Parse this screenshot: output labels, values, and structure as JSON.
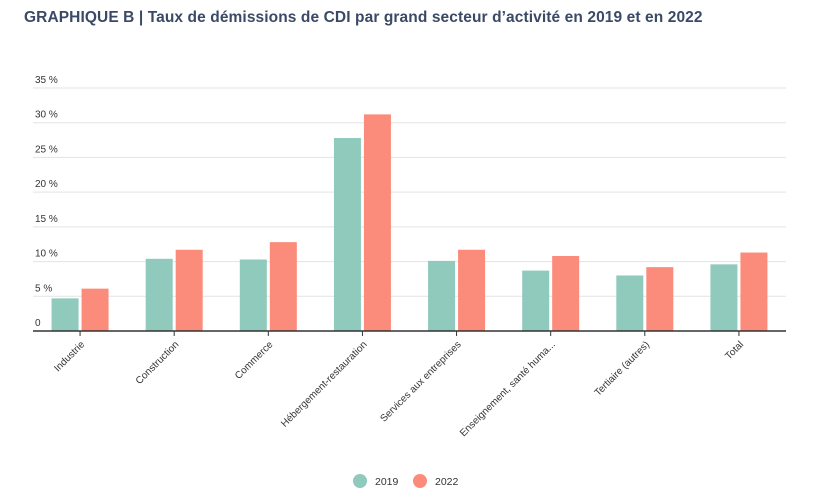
{
  "chart_data": {
    "type": "bar",
    "title": "GRAPHIQUE B | Taux de démissions de CDI par grand secteur d’activité en 2019 et en 2022",
    "xlabel": "",
    "ylabel": "",
    "ylim": [
      0,
      35
    ],
    "yticks": [
      0,
      5,
      10,
      15,
      20,
      25,
      30,
      35
    ],
    "ytick_labels": [
      "0",
      "5 %",
      "10 %",
      "15 %",
      "20 %",
      "25 %",
      "30 %",
      "35 %"
    ],
    "grid": true,
    "legend_position": "bottom-center",
    "categories": [
      "Industrie",
      "Construction",
      "Commerce",
      "Hébergement-restauration",
      "Services aux entreprises",
      "Enseignement, santé huma...",
      "Tertiaire (autres)",
      "Total"
    ],
    "series": [
      {
        "name": "2019",
        "color": "#8fcabd",
        "values": [
          4.7,
          10.4,
          10.3,
          27.8,
          10.1,
          8.7,
          8.0,
          9.6
        ]
      },
      {
        "name": "2022",
        "color": "#fb8b7b",
        "values": [
          6.1,
          11.7,
          12.8,
          31.2,
          11.7,
          10.8,
          9.2,
          11.3
        ]
      }
    ]
  }
}
